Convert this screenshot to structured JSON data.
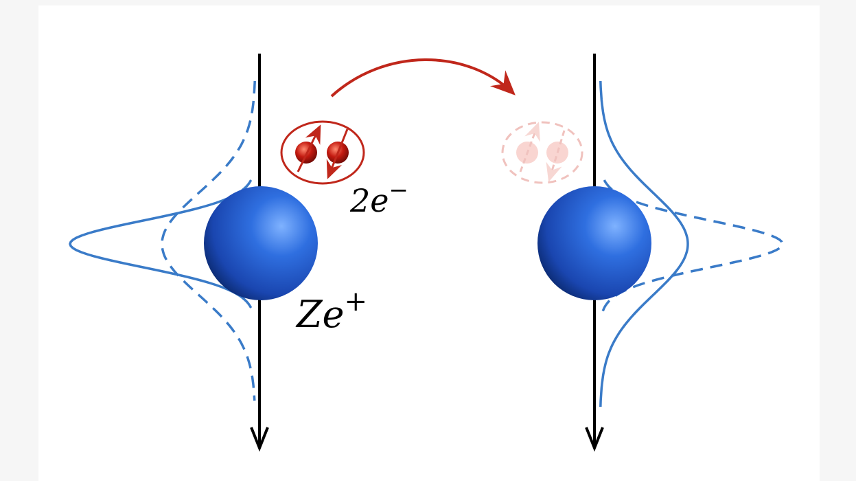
{
  "labels": {
    "electrons": "2e",
    "electrons_charge": "−",
    "nucleus": "Ze",
    "nucleus_charge": "+"
  }
}
